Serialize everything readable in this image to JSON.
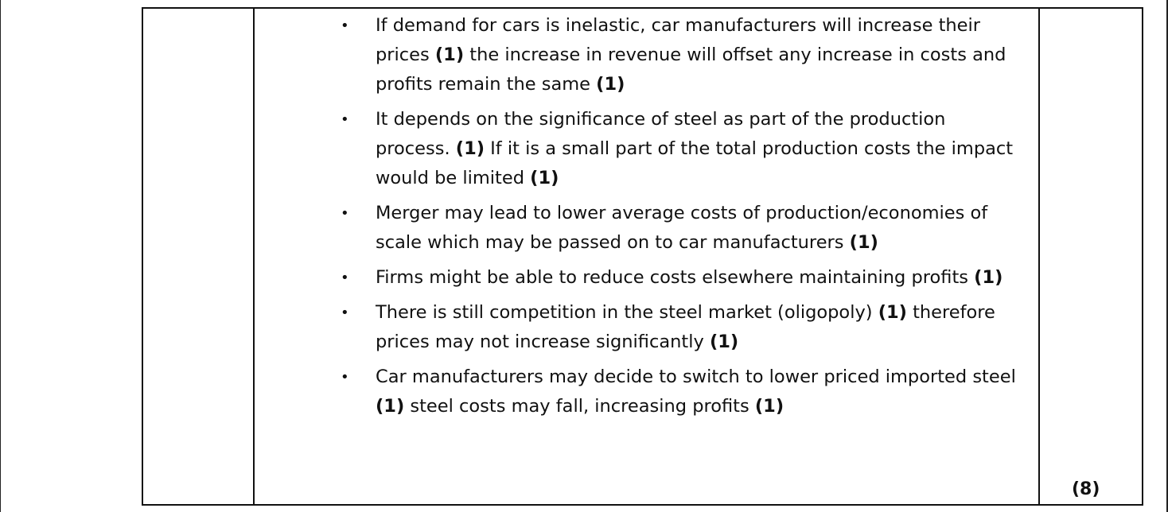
{
  "answer": {
    "items": [
      {
        "parts": [
          {
            "text": "If demand for cars is inelastic, car manufacturers will increase their prices ",
            "bold": false
          },
          {
            "text": "(1)",
            "bold": true
          },
          {
            "text": " the increase in revenue will offset any increase in costs and profits remain the same ",
            "bold": false
          },
          {
            "text": "(1)",
            "bold": true
          }
        ]
      },
      {
        "parts": [
          {
            "text": "It depends on the significance of steel as part of the production process. ",
            "bold": false
          },
          {
            "text": "(1)",
            "bold": true
          },
          {
            "text": " If it is a small part of the total production costs the impact would be limited ",
            "bold": false
          },
          {
            "text": "(1)",
            "bold": true
          }
        ]
      },
      {
        "parts": [
          {
            "text": "Merger may lead to lower average costs of production/economies of scale which may be passed on to car manufacturers ",
            "bold": false
          },
          {
            "text": "(1)",
            "bold": true
          }
        ]
      },
      {
        "parts": [
          {
            "text": "Firms might be able to reduce costs elsewhere maintaining profits ",
            "bold": false
          },
          {
            "text": "(1)",
            "bold": true
          }
        ]
      },
      {
        "parts": [
          {
            "text": "There is still competition in the steel market (oligopoly) ",
            "bold": false
          },
          {
            "text": "(1)",
            "bold": true
          },
          {
            "text": " therefore prices may not increase significantly ",
            "bold": false
          },
          {
            "text": "(1)",
            "bold": true
          }
        ]
      },
      {
        "parts": [
          {
            "text": "Car manufacturers may decide to switch to lower priced imported steel ",
            "bold": false
          },
          {
            "text": "(1)",
            "bold": true
          },
          {
            "text": " steel costs may fall, increasing profits ",
            "bold": false
          },
          {
            "text": "(1)",
            "bold": true
          }
        ]
      }
    ]
  },
  "marks": {
    "total": "(8)"
  },
  "bullet_glyph": "•"
}
